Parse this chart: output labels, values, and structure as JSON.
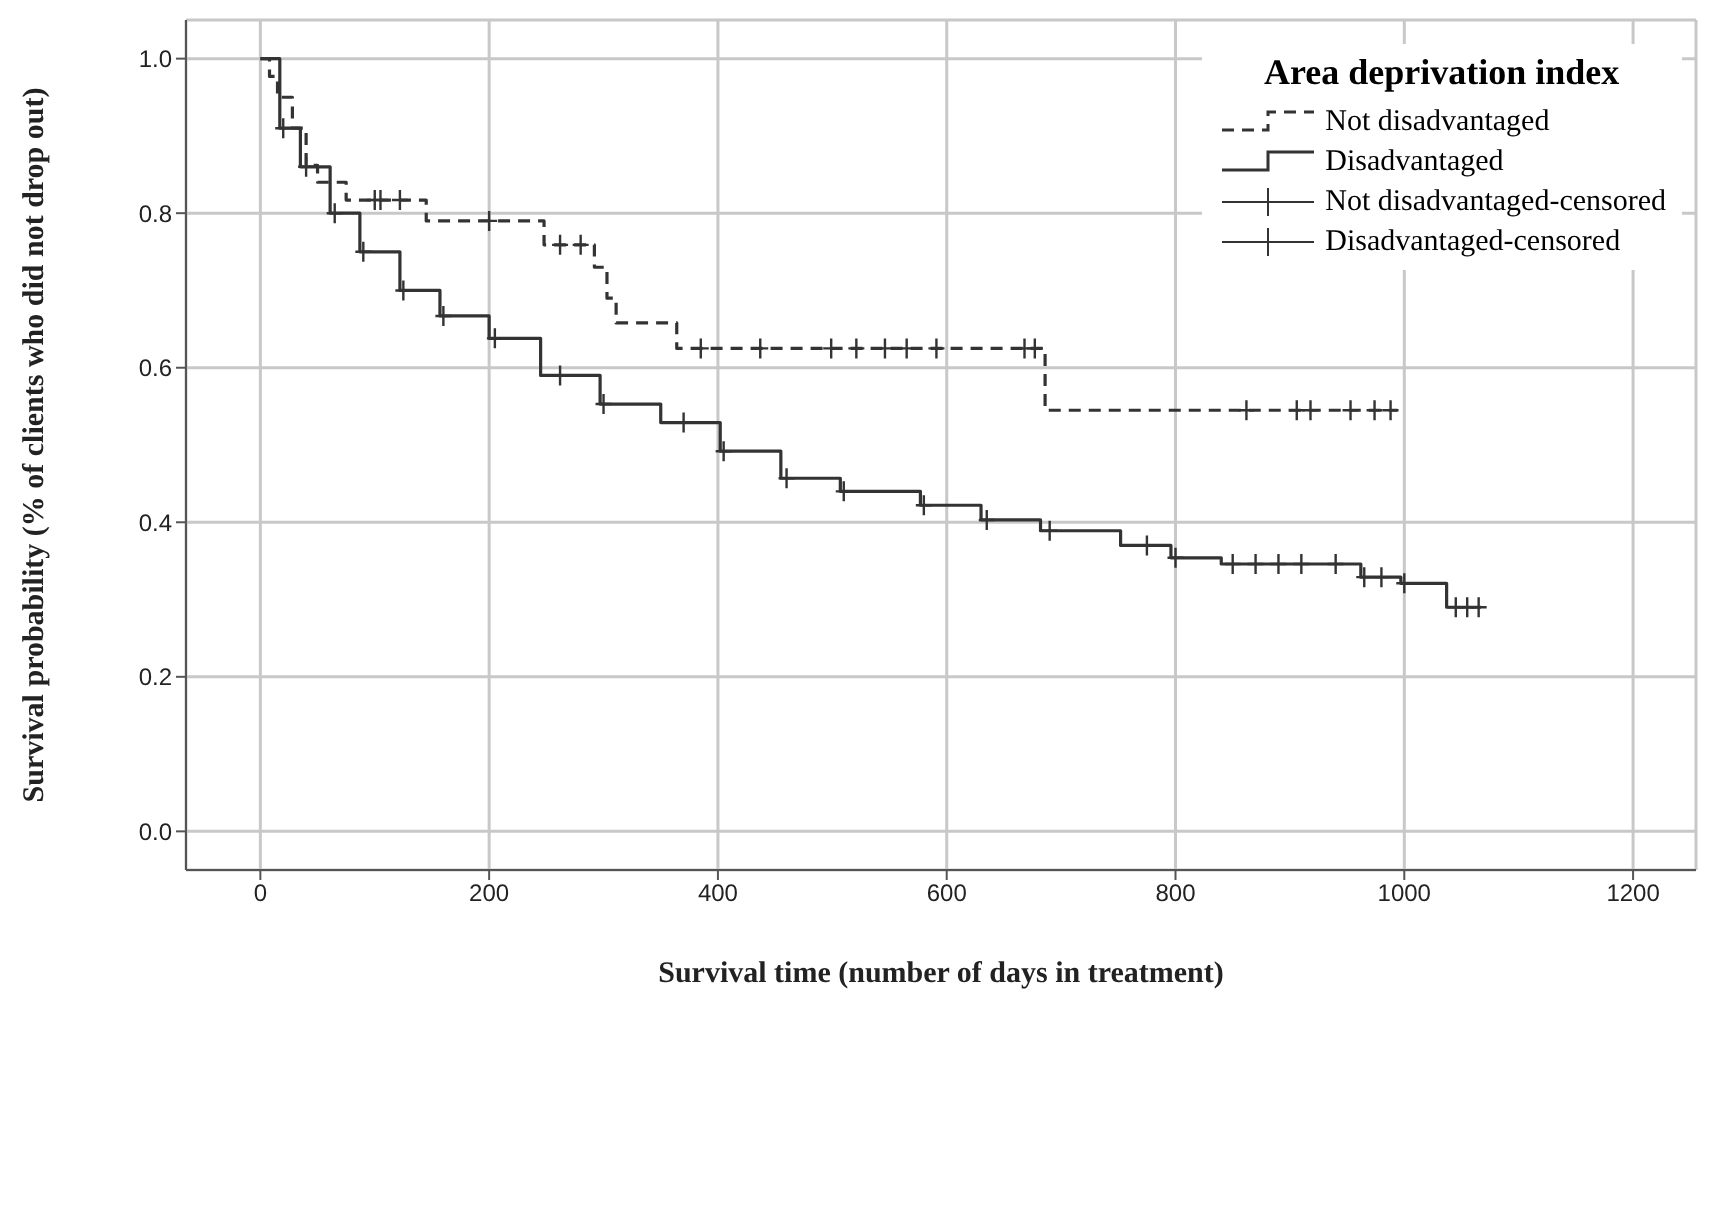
{
  "chart_data": {
    "type": "step",
    "xlabel": "Survival time (number of days in treatment)",
    "ylabel": "Survival probability (% of clients who did not drop out)",
    "legend_title": "Area deprivation index",
    "legend": "top right",
    "grid": true,
    "xlim": [
      -65,
      1255
    ],
    "xticks": [
      0,
      200,
      400,
      600,
      800,
      1000,
      1200
    ],
    "ylim": [
      -0.05,
      1.05
    ],
    "yticks": [
      {
        "value": 0,
        "label": "0.0"
      },
      0.2,
      0.4,
      0.6,
      0.8,
      {
        "value": 1,
        "label": "1.0"
      }
    ],
    "series": [
      {
        "name": "Not disadvantaged",
        "line_style": "dashed",
        "color": "#333333",
        "x": [
          0,
          8,
          15,
          28,
          40,
          50,
          75,
          145,
          248,
          292,
          303,
          311,
          364,
          686,
          994
        ],
        "values": [
          1.0,
          0.977,
          0.95,
          0.91,
          0.862,
          0.84,
          0.817,
          0.79,
          0.759,
          0.73,
          0.69,
          0.658,
          0.625,
          0.545,
          0.545
        ]
      },
      {
        "name": "Disadvantaged",
        "line_style": "solid",
        "color": "#333333",
        "x": [
          0,
          17,
          35,
          61,
          87,
          122,
          157,
          200,
          245,
          297,
          350,
          402,
          455,
          507,
          577,
          630,
          682,
          752,
          796,
          840,
          927,
          962,
          997,
          1037,
          1067
        ],
        "values": [
          1.0,
          0.91,
          0.86,
          0.8,
          0.75,
          0.7,
          0.667,
          0.638,
          0.59,
          0.553,
          0.529,
          0.492,
          0.457,
          0.44,
          0.422,
          0.403,
          0.389,
          0.37,
          0.354,
          0.346,
          0.346,
          0.329,
          0.321,
          0.29,
          0.29
        ]
      },
      {
        "name": "Not disadvantaged-censored",
        "type": "scatter",
        "marker": "cross",
        "color": "#333333",
        "x": [
          100,
          105,
          122,
          200,
          262,
          280,
          385,
          437,
          499,
          521,
          546,
          565,
          591,
          668,
          677,
          862,
          906,
          918,
          953,
          974,
          988
        ],
        "values": [
          0.817,
          0.817,
          0.817,
          0.79,
          0.759,
          0.759,
          0.625,
          0.625,
          0.625,
          0.625,
          0.625,
          0.625,
          0.625,
          0.625,
          0.625,
          0.545,
          0.545,
          0.545,
          0.545,
          0.545,
          0.545
        ]
      },
      {
        "name": "Disadvantaged-censored",
        "type": "scatter",
        "marker": "cross",
        "color": "#333333",
        "x": [
          20,
          40,
          65,
          90,
          125,
          160,
          205,
          262,
          300,
          370,
          405,
          460,
          510,
          580,
          635,
          690,
          775,
          800,
          850,
          870,
          890,
          910,
          940,
          965,
          980,
          1000,
          1045,
          1055,
          1065
        ],
        "values": [
          0.91,
          0.86,
          0.8,
          0.75,
          0.7,
          0.667,
          0.638,
          0.59,
          0.553,
          0.529,
          0.492,
          0.457,
          0.44,
          0.422,
          0.403,
          0.389,
          0.37,
          0.354,
          0.346,
          0.346,
          0.346,
          0.346,
          0.346,
          0.329,
          0.329,
          0.321,
          0.29,
          0.29,
          0.29
        ]
      }
    ]
  }
}
